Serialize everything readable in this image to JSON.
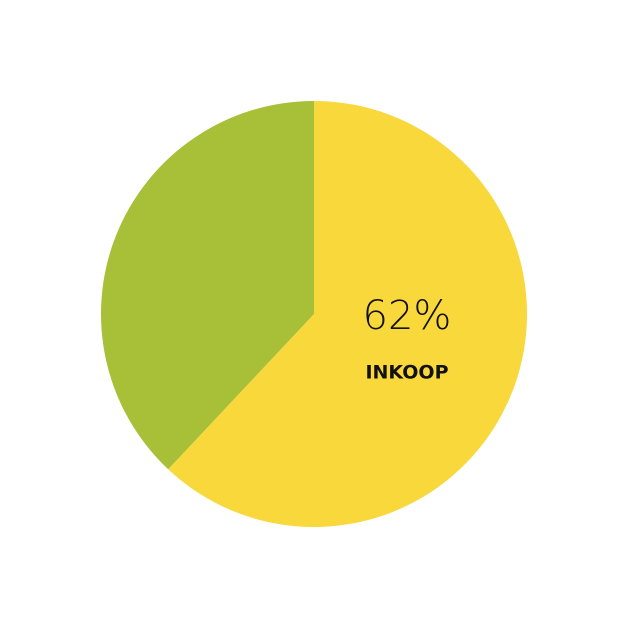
{
  "chart_data": {
    "type": "pie",
    "categories": [
      "INKOOP",
      null
    ],
    "values": [
      62,
      38
    ],
    "value_labels": [
      "62%",
      null
    ],
    "colors": [
      "#f9d83b",
      "#a8bf38"
    ]
  }
}
